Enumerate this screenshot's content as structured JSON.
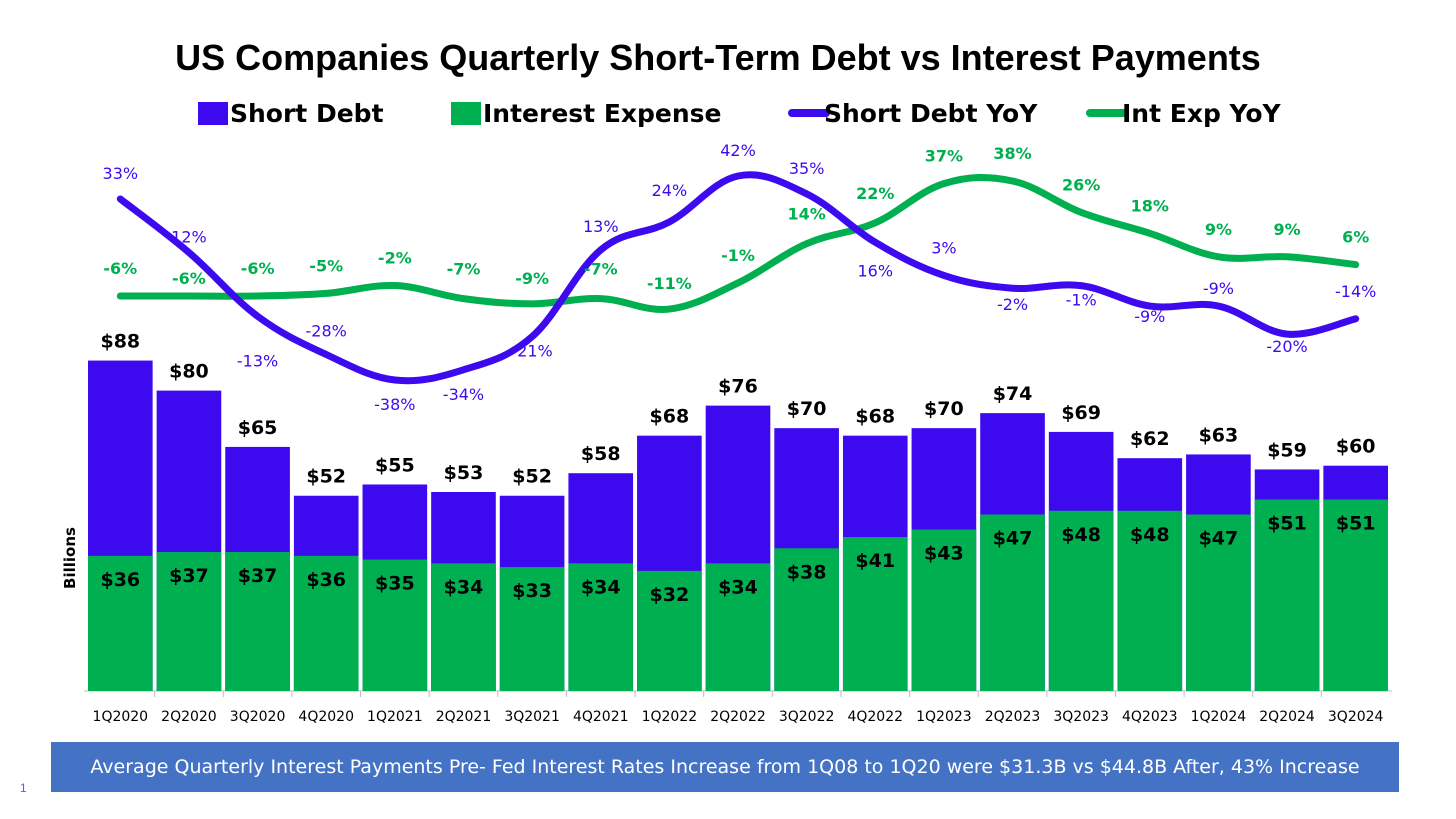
{
  "chart_data": {
    "type": "bar",
    "title": "US Companies Quarterly Short-Term Debt vs Interest Payments",
    "ylabel": "Billions",
    "categories": [
      "1Q2020",
      "2Q2020",
      "3Q2020",
      "4Q2020",
      "1Q2021",
      "2Q2021",
      "3Q2021",
      "4Q2021",
      "1Q2022",
      "2Q2022",
      "3Q2022",
      "4Q2022",
      "1Q2023",
      "2Q2023",
      "3Q2023",
      "4Q2023",
      "1Q2024",
      "2Q2024",
      "3Q2024"
    ],
    "bar_ylim": [
      0,
      95
    ],
    "series": [
      {
        "name": "Short Debt",
        "kind": "bar",
        "color": "#3d0af0",
        "values": [
          88,
          80,
          65,
          52,
          55,
          53,
          52,
          58,
          68,
          76,
          70,
          68,
          70,
          74,
          69,
          62,
          63,
          59,
          60
        ],
        "labels": [
          "$88",
          "$80",
          "$65",
          "$52",
          "$55",
          "$53",
          "$52",
          "$58",
          "$68",
          "$76",
          "$70",
          "$68",
          "$70",
          "$74",
          "$69",
          "$62",
          "$63",
          "$59",
          "$60"
        ]
      },
      {
        "name": "Interest Expense",
        "kind": "bar",
        "color": "#00b050",
        "values": [
          36,
          37,
          37,
          36,
          35,
          34,
          33,
          34,
          32,
          34,
          38,
          41,
          43,
          47,
          48,
          48,
          47,
          51,
          51
        ],
        "labels": [
          "$36",
          "$37",
          "$37",
          "$36",
          "$35",
          "$34",
          "$33",
          "$34",
          "$32",
          "$34",
          "$38",
          "$41",
          "$43",
          "$47",
          "$48",
          "$48",
          "$47",
          "$51",
          "$51"
        ]
      },
      {
        "name": "Short Debt YoY",
        "kind": "line",
        "color": "#3d0af0",
        "values": [
          33,
          12,
          -13,
          -28,
          -38,
          -34,
          -21,
          13,
          24,
          42,
          35,
          16,
          3,
          -2,
          -1,
          -9,
          -9,
          -20,
          -14
        ],
        "labels": [
          "33%",
          "12%",
          "-13%",
          "-28%",
          "-38%",
          "-34%",
          "-21%",
          "13%",
          "24%",
          "42%",
          "35%",
          "16%",
          "3%",
          "-2%",
          "-1%",
          "-9%",
          "-9%",
          "-20%",
          "-14%"
        ]
      },
      {
        "name": "Int Exp YoY",
        "kind": "line",
        "color": "#00b050",
        "values": [
          -6,
          -6,
          -6,
          -5,
          -2,
          -7,
          -9,
          -7,
          -11,
          -1,
          14,
          22,
          37,
          38,
          26,
          18,
          9,
          9,
          6
        ],
        "labels": [
          "-6%",
          "-6%",
          "-6%",
          "-5%",
          "-2%",
          "-7%",
          "-9%",
          "-7%",
          "-11%",
          "-1%",
          "14%",
          "22%",
          "37%",
          "38%",
          "26%",
          "18%",
          "9%",
          "9%",
          "6%"
        ]
      }
    ],
    "line_ylim": [
      -60,
      55
    ],
    "legend": "top"
  },
  "footer": {
    "banner": "Average Quarterly Interest Payments Pre- Fed Interest Rates Increase from 1Q08 to 1Q20 were $31.3B vs $44.8B After, 43% Increase",
    "page_number": "1"
  }
}
